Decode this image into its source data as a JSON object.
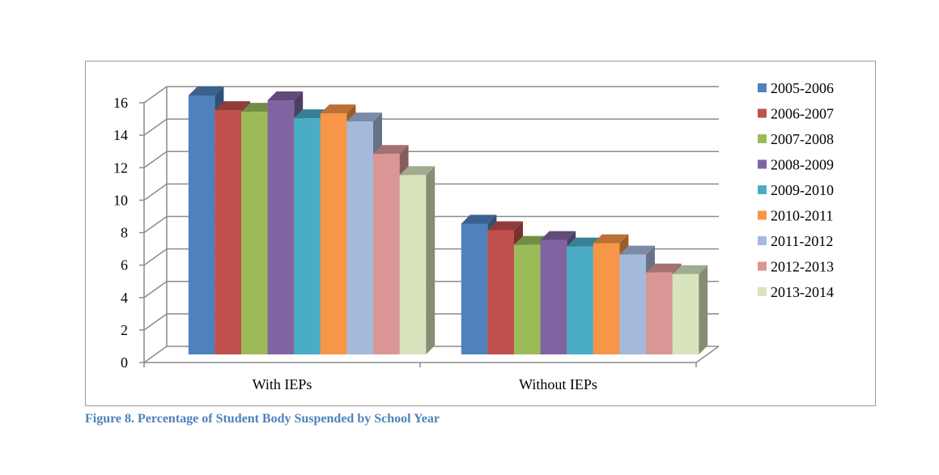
{
  "chart_data": {
    "type": "bar",
    "style": "3d-clustered-column",
    "categories": [
      "With IEPs",
      "Without IEPs"
    ],
    "series": [
      {
        "name": "2005-2006",
        "color": "#4f81bd",
        "values": [
          15.9,
          8.0
        ]
      },
      {
        "name": "2006-2007",
        "color": "#c0504d",
        "values": [
          15.0,
          7.6
        ]
      },
      {
        "name": "2007-2008",
        "color": "#9bbb59",
        "values": [
          14.9,
          6.7
        ]
      },
      {
        "name": "2008-2009",
        "color": "#8064a2",
        "values": [
          15.6,
          7.0
        ]
      },
      {
        "name": "2009-2010",
        "color": "#4bacc6",
        "values": [
          14.5,
          6.6
        ]
      },
      {
        "name": "2010-2011",
        "color": "#f79646",
        "values": [
          14.8,
          6.8
        ]
      },
      {
        "name": "2011-2012",
        "color": "#a5b9dc",
        "values": [
          14.3,
          6.1
        ]
      },
      {
        "name": "2012-2013",
        "color": "#d99694",
        "values": [
          12.3,
          5.0
        ]
      },
      {
        "name": "2013-2014",
        "color": "#d7e4bd",
        "values": [
          11.0,
          4.9
        ]
      }
    ],
    "yticks": [
      "0",
      "2",
      "4",
      "6",
      "8",
      "10",
      "12",
      "14",
      "16"
    ],
    "ylim": [
      0,
      16
    ],
    "grid": true,
    "legend": "right",
    "title": "",
    "xlabel": "",
    "ylabel": ""
  },
  "caption": "Figure 8. Percentage of Student Body Suspended by School Year"
}
